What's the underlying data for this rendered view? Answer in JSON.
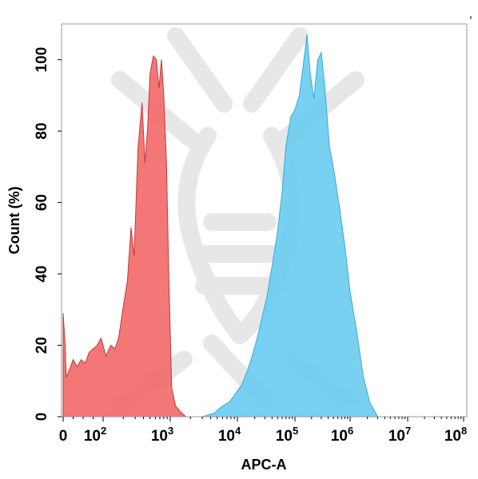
{
  "chart_data": {
    "type": "area",
    "title": "",
    "xlabel": "APC-A",
    "ylabel": "Count (%)",
    "xscale": "biexponential",
    "xlim": [
      0,
      100000000
    ],
    "ylim": [
      0,
      110
    ],
    "grid": false,
    "legend": "none",
    "x_ticks": [
      {
        "base": "0",
        "exp": ""
      },
      {
        "base": "10",
        "exp": "2"
      },
      {
        "base": "10",
        "exp": "3"
      },
      {
        "base": "10",
        "exp": "4"
      },
      {
        "base": "10",
        "exp": "5"
      },
      {
        "base": "10",
        "exp": "6"
      },
      {
        "base": "10",
        "exp": "7"
      },
      {
        "base": "10",
        "exp": "8"
      }
    ],
    "y_ticks": [
      "0",
      "20",
      "40",
      "60",
      "80",
      "100"
    ],
    "series": [
      {
        "color": "#f26b6b",
        "stroke": "#c43a3a",
        "points": [
          [
            0,
            29
          ],
          [
            5,
            20
          ],
          [
            8,
            11
          ],
          [
            15,
            13
          ],
          [
            25,
            16
          ],
          [
            35,
            14
          ],
          [
            45,
            16
          ],
          [
            55,
            15
          ],
          [
            65,
            18
          ],
          [
            75,
            19
          ],
          [
            85,
            20
          ],
          [
            95,
            22
          ],
          [
            110,
            17
          ],
          [
            130,
            20
          ],
          [
            150,
            19
          ],
          [
            170,
            22
          ],
          [
            200,
            31
          ],
          [
            230,
            38
          ],
          [
            260,
            53
          ],
          [
            290,
            45
          ],
          [
            330,
            75
          ],
          [
            380,
            88
          ],
          [
            420,
            71
          ],
          [
            460,
            81
          ],
          [
            500,
            96
          ],
          [
            560,
            101
          ],
          [
            620,
            100
          ],
          [
            680,
            92
          ],
          [
            740,
            100
          ],
          [
            800,
            90
          ],
          [
            880,
            71
          ],
          [
            950,
            40
          ],
          [
            1050,
            8
          ],
          [
            1200,
            3
          ],
          [
            1400,
            1.5
          ],
          [
            1700,
            0
          ]
        ]
      },
      {
        "color": "#6dcdf0",
        "stroke": "#3aa9d8",
        "points": [
          [
            3000,
            0
          ],
          [
            4500,
            1
          ],
          [
            6000,
            3
          ],
          [
            7500,
            4
          ],
          [
            9000,
            6
          ],
          [
            12000,
            9
          ],
          [
            15000,
            13
          ],
          [
            18000,
            17
          ],
          [
            22000,
            22
          ],
          [
            27000,
            28
          ],
          [
            33000,
            34
          ],
          [
            40000,
            42
          ],
          [
            50000,
            52
          ],
          [
            60000,
            63
          ],
          [
            70000,
            76
          ],
          [
            85000,
            84
          ],
          [
            100000,
            86
          ],
          [
            120000,
            90
          ],
          [
            140000,
            98
          ],
          [
            165000,
            107
          ],
          [
            190000,
            96
          ],
          [
            220000,
            89
          ],
          [
            260000,
            100
          ],
          [
            300000,
            102
          ],
          [
            350000,
            92
          ],
          [
            420000,
            76
          ],
          [
            520000,
            68
          ],
          [
            650000,
            58
          ],
          [
            800000,
            48
          ],
          [
            1000000,
            35
          ],
          [
            1300000,
            24
          ],
          [
            1700000,
            11
          ],
          [
            2200000,
            4
          ],
          [
            3000000,
            0
          ]
        ]
      }
    ]
  }
}
